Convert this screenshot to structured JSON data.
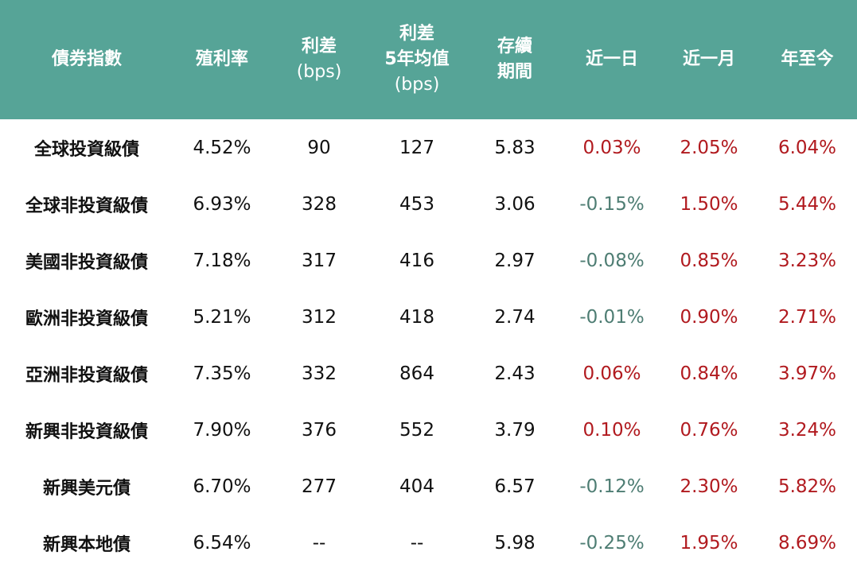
{
  "header": {
    "index": "債券指數",
    "yield": "殖利率",
    "spread": [
      "利差",
      "(bps)"
    ],
    "spread_5y": [
      "利差",
      "5年均值",
      "(bps)"
    ],
    "duration": [
      "存續",
      "期間"
    ],
    "day": "近一日",
    "month": "近一月",
    "ytd": "年至今"
  },
  "colors": {
    "header_bg": "#56a497",
    "positive": "#b11a1f",
    "negative": "#4e7d73"
  },
  "rows": [
    {
      "name": "全球投資級債",
      "yield": "4.52%",
      "spread": "90",
      "spread_5y": "127",
      "duration": "5.83",
      "day": "0.03%",
      "month": "2.05%",
      "ytd": "6.04%"
    },
    {
      "name": "全球非投資級債",
      "yield": "6.93%",
      "spread": "328",
      "spread_5y": "453",
      "duration": "3.06",
      "day": "-0.15%",
      "month": "1.50%",
      "ytd": "5.44%"
    },
    {
      "name": "美國非投資級債",
      "yield": "7.18%",
      "spread": "317",
      "spread_5y": "416",
      "duration": "2.97",
      "day": "-0.08%",
      "month": "0.85%",
      "ytd": "3.23%"
    },
    {
      "name": "歐洲非投資級債",
      "yield": "5.21%",
      "spread": "312",
      "spread_5y": "418",
      "duration": "2.74",
      "day": "-0.01%",
      "month": "0.90%",
      "ytd": "2.71%"
    },
    {
      "name": "亞洲非投資級債",
      "yield": "7.35%",
      "spread": "332",
      "spread_5y": "864",
      "duration": "2.43",
      "day": "0.06%",
      "month": "0.84%",
      "ytd": "3.97%"
    },
    {
      "name": "新興非投資級債",
      "yield": "7.90%",
      "spread": "376",
      "spread_5y": "552",
      "duration": "3.79",
      "day": "0.10%",
      "month": "0.76%",
      "ytd": "3.24%"
    },
    {
      "name": "新興美元債",
      "yield": "6.70%",
      "spread": "277",
      "spread_5y": "404",
      "duration": "6.57",
      "day": "-0.12%",
      "month": "2.30%",
      "ytd": "5.82%"
    },
    {
      "name": "新興本地債",
      "yield": "6.54%",
      "spread": "--",
      "spread_5y": "--",
      "duration": "5.98",
      "day": "-0.25%",
      "month": "1.95%",
      "ytd": "8.69%"
    }
  ]
}
